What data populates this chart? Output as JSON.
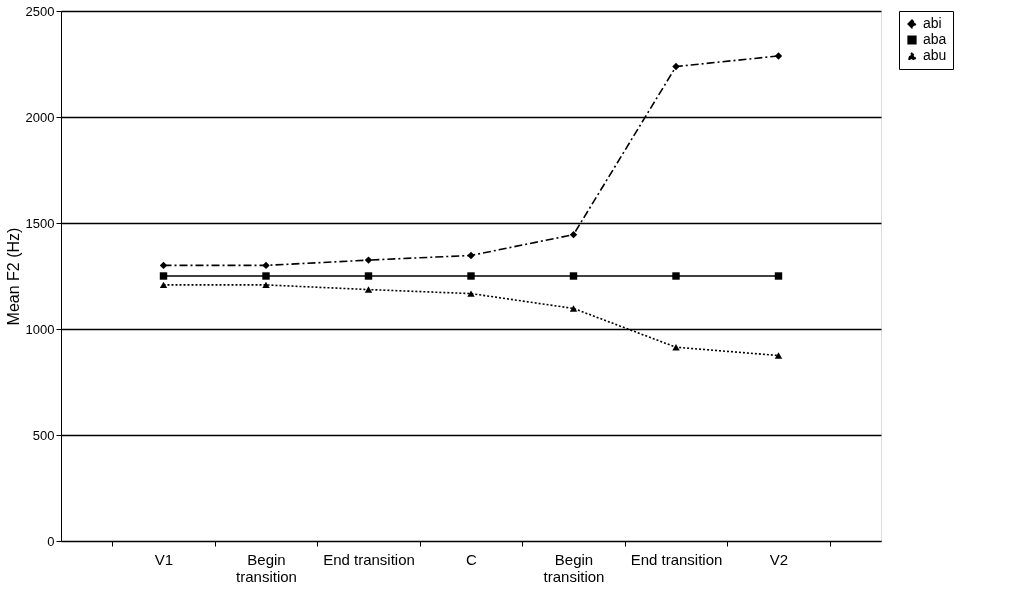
{
  "chart_data": {
    "type": "line",
    "ylabel": "Mean F2 (Hz)",
    "categories": [
      "V1",
      "Begin\ntransition",
      "End transition",
      "C",
      "Begin\ntransition",
      "End transition",
      "V2"
    ],
    "ylim": [
      0,
      2500
    ],
    "yticks": [
      0,
      500,
      1000,
      1500,
      2000,
      2500
    ],
    "grid": "y",
    "legend": "right",
    "series": [
      {
        "name": "abi",
        "color": "#000000",
        "marker": "diamond",
        "line_style": "dashdot",
        "values": [
          1300,
          1300,
          1325,
          1347,
          1445,
          2238,
          2288
        ]
      },
      {
        "name": "aba",
        "color": "#000000",
        "marker": "square",
        "line_style": "solid",
        "values": [
          1250,
          1250,
          1250,
          1250,
          1250,
          1250,
          1250
        ]
      },
      {
        "name": "abu",
        "color": "#000000",
        "marker": "triangle",
        "line_style": "dotted",
        "values": [
          1208,
          1208,
          1186,
          1167,
          1097,
          914,
          875
        ]
      }
    ]
  }
}
